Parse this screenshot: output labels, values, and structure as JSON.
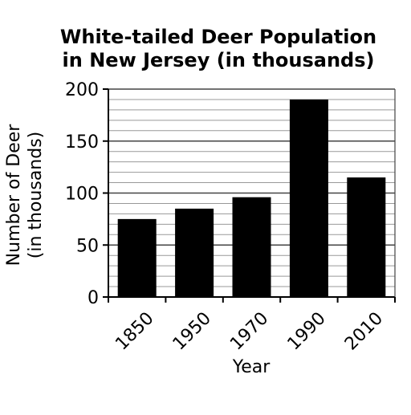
{
  "chart_data": {
    "type": "bar",
    "title_lines": [
      "White-tailed Deer Population",
      "in New Jersey (in thousands)"
    ],
    "categories": [
      "1850",
      "1950",
      "1970",
      "1990",
      "2010"
    ],
    "values": [
      75,
      85,
      96,
      190,
      115
    ],
    "xlabel": "Year",
    "ylabel_lines": [
      "Number of Deer",
      "(in thousands)"
    ],
    "ylim": [
      0,
      200
    ],
    "yticks": [
      0,
      50,
      100,
      150,
      200
    ],
    "minor_gridline_step": 10,
    "grid": true,
    "bar_color": "#000000",
    "grid_color": "#999999",
    "axis_color": "#000000"
  }
}
